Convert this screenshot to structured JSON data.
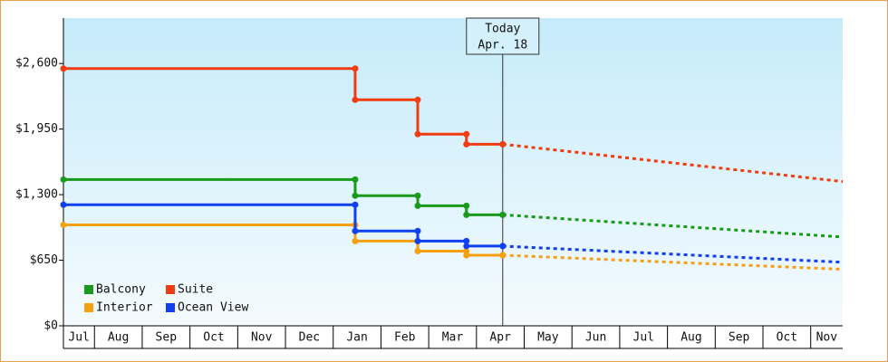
{
  "chart_data": {
    "type": "step",
    "categories": [
      "Jul",
      "Aug",
      "Sep",
      "Oct",
      "Nov",
      "Dec",
      "Jan",
      "Feb",
      "Mar",
      "Apr",
      "May",
      "Jun",
      "Jul",
      "Aug",
      "Sep",
      "Oct",
      "Nov"
    ],
    "xlim": [
      0.35,
      16.67
    ],
    "ylim": [
      0,
      3050
    ],
    "yticks": [
      {
        "value": 0,
        "label": "$0"
      },
      {
        "value": 650,
        "label": "$650"
      },
      {
        "value": 1300,
        "label": "$1,300"
      },
      {
        "value": 1950,
        "label": "$1,950"
      },
      {
        "value": 2600,
        "label": "$2,600"
      }
    ],
    "today": {
      "x": 9.55,
      "label": "Today",
      "date": "Apr. 18"
    },
    "legend": "bottom-left",
    "series": [
      {
        "name": "Balcony",
        "color": "#1a9a1a",
        "x": [
          0.35,
          6.46,
          7.77,
          8.79,
          9.55
        ],
        "values": [
          1450,
          1290,
          1190,
          1100,
          1100
        ],
        "projection": {
          "x": [
            9.55,
            16.67
          ],
          "values": [
            1100,
            880
          ]
        }
      },
      {
        "name": "Suite",
        "color": "#f03c10",
        "x": [
          0.35,
          6.46,
          7.77,
          8.79,
          9.55
        ],
        "values": [
          2550,
          2240,
          1900,
          1800,
          1800
        ],
        "projection": {
          "x": [
            9.55,
            16.67
          ],
          "values": [
            1800,
            1430
          ]
        }
      },
      {
        "name": "Interior",
        "color": "#f5a010",
        "x": [
          0.35,
          6.46,
          7.77,
          8.79,
          9.55
        ],
        "values": [
          1000,
          840,
          740,
          700,
          700
        ],
        "projection": {
          "x": [
            9.55,
            16.67
          ],
          "values": [
            700,
            560
          ]
        }
      },
      {
        "name": "Ocean View",
        "color": "#1040f0",
        "x": [
          0.35,
          6.46,
          7.77,
          8.79,
          9.55
        ],
        "values": [
          1200,
          940,
          840,
          790,
          790
        ],
        "projection": {
          "x": [
            9.55,
            16.67
          ],
          "values": [
            790,
            630
          ]
        }
      }
    ]
  }
}
